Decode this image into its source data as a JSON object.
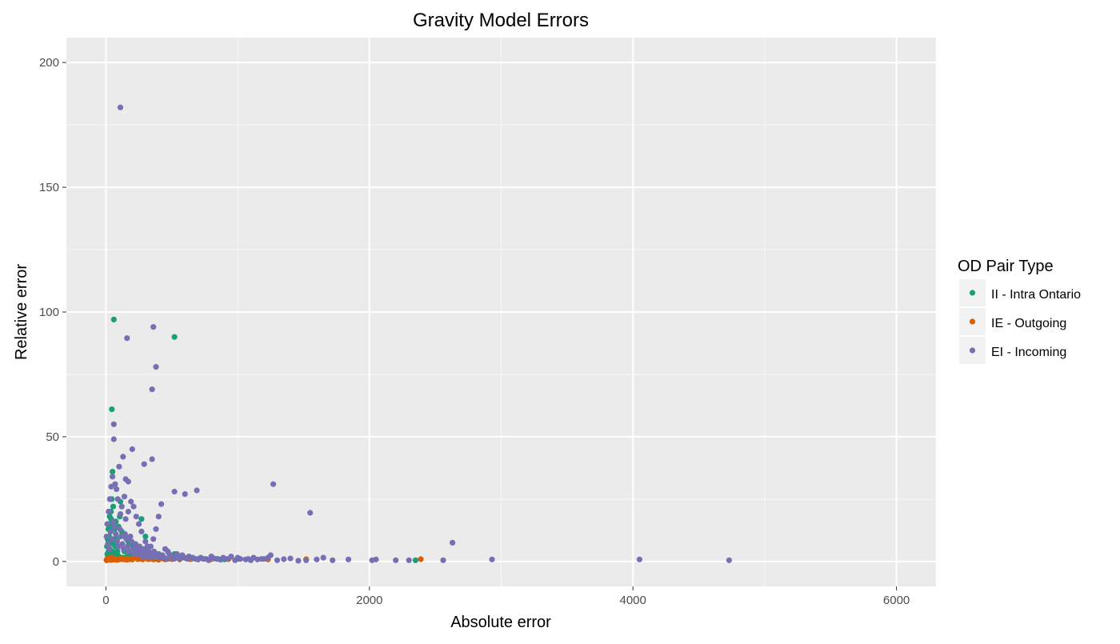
{
  "chart_data": {
    "type": "scatter",
    "title": "Gravity Model Errors",
    "xlabel": "Absolute error",
    "ylabel": "Relative error",
    "xlim": [
      -300,
      6300
    ],
    "ylim": [
      -10,
      210
    ],
    "x_ticks": [
      0,
      2000,
      4000,
      6000
    ],
    "y_ticks": [
      0,
      50,
      100,
      150,
      200
    ],
    "x_tick_labels": [
      "0",
      "2000",
      "4000",
      "6000"
    ],
    "y_tick_labels": [
      "0",
      "50",
      "100",
      "150",
      "200"
    ],
    "grid": true,
    "legend": {
      "title": "OD Pair Type",
      "position": "right"
    },
    "series": [
      {
        "name": "II - Intra Ontario",
        "color": "#1b9e77",
        "points": [
          [
            60,
            97
          ],
          [
            520,
            90
          ],
          [
            45,
            61
          ],
          [
            50,
            36
          ],
          [
            40,
            17
          ],
          [
            30,
            15
          ],
          [
            35,
            12
          ],
          [
            25,
            10
          ],
          [
            20,
            8
          ],
          [
            15,
            6
          ],
          [
            30,
            5
          ],
          [
            20,
            4
          ],
          [
            10,
            3
          ],
          [
            25,
            3
          ],
          [
            40,
            3
          ],
          [
            50,
            4
          ],
          [
            15,
            2
          ],
          [
            30,
            2
          ],
          [
            45,
            2
          ],
          [
            60,
            2
          ],
          [
            35,
            1
          ],
          [
            20,
            1
          ],
          [
            10,
            1
          ],
          [
            5,
            0.5
          ],
          [
            70,
            1.5
          ],
          [
            80,
            3
          ],
          [
            55,
            7
          ],
          [
            65,
            13
          ],
          [
            75,
            16
          ],
          [
            110,
            24
          ],
          [
            120,
            12
          ],
          [
            145,
            10
          ],
          [
            170,
            8
          ],
          [
            200,
            7
          ],
          [
            210,
            6
          ],
          [
            270,
            17
          ],
          [
            300,
            10
          ],
          [
            310,
            5
          ],
          [
            350,
            3
          ],
          [
            400,
            3
          ],
          [
            420,
            2
          ],
          [
            500,
            2
          ],
          [
            520,
            3
          ],
          [
            550,
            2
          ],
          [
            600,
            1.5
          ],
          [
            650,
            1
          ],
          [
            700,
            1
          ],
          [
            800,
            1
          ],
          [
            850,
            1
          ],
          [
            900,
            0.8
          ],
          [
            1000,
            1
          ],
          [
            2350,
            0.5
          ],
          [
            100,
            2
          ],
          [
            130,
            1.5
          ],
          [
            160,
            2
          ],
          [
            190,
            1.5
          ],
          [
            230,
            2
          ],
          [
            250,
            1
          ],
          [
            280,
            1
          ],
          [
            330,
            1
          ],
          [
            380,
            1
          ],
          [
            440,
            1
          ],
          [
            470,
            1
          ],
          [
            90,
            6
          ],
          [
            85,
            9
          ],
          [
            95,
            14
          ],
          [
            105,
            18
          ],
          [
            55,
            22
          ],
          [
            45,
            25
          ],
          [
            38,
            20
          ],
          [
            28,
            18
          ],
          [
            18,
            13
          ],
          [
            12,
            9
          ],
          [
            8,
            6
          ],
          [
            42,
            14
          ],
          [
            62,
            9
          ],
          [
            72,
            6
          ],
          [
            88,
            4
          ],
          [
            140,
            4
          ],
          [
            180,
            3
          ],
          [
            240,
            4
          ],
          [
            290,
            3
          ]
        ]
      },
      {
        "name": "IE - Outgoing",
        "color": "#d95f02",
        "points": [
          [
            5,
            0.5
          ],
          [
            10,
            0.6
          ],
          [
            20,
            0.7
          ],
          [
            30,
            0.8
          ],
          [
            40,
            0.6
          ],
          [
            50,
            0.7
          ],
          [
            60,
            0.8
          ],
          [
            70,
            0.9
          ],
          [
            80,
            0.6
          ],
          [
            90,
            0.7
          ],
          [
            100,
            0.8
          ],
          [
            120,
            0.9
          ],
          [
            140,
            0.8
          ],
          [
            160,
            0.7
          ],
          [
            180,
            0.9
          ],
          [
            200,
            0.8
          ],
          [
            240,
            0.9
          ],
          [
            280,
            0.8
          ],
          [
            320,
            0.9
          ],
          [
            360,
            0.8
          ],
          [
            400,
            0.7
          ],
          [
            450,
            0.8
          ],
          [
            500,
            0.9
          ],
          [
            560,
            0.8
          ],
          [
            640,
            0.9
          ],
          [
            700,
            0.8
          ],
          [
            800,
            0.9
          ],
          [
            930,
            0.9
          ],
          [
            1230,
            0.8
          ],
          [
            1520,
            0.9
          ],
          [
            2390,
            0.9
          ],
          [
            15,
            1.2
          ],
          [
            25,
            1.3
          ],
          [
            45,
            1.5
          ],
          [
            65,
            1.1
          ],
          [
            110,
            1.3
          ],
          [
            150,
            1.2
          ],
          [
            210,
            1.4
          ],
          [
            260,
            1.1
          ],
          [
            310,
            1.2
          ],
          [
            380,
            1.3
          ],
          [
            430,
            1.2
          ],
          [
            520,
            1.1
          ],
          [
            610,
            1.2
          ]
        ]
      },
      {
        "name": "EI - Incoming",
        "color": "#7570b3",
        "points": [
          [
            110,
            182
          ],
          [
            360,
            94
          ],
          [
            160,
            89.5
          ],
          [
            380,
            78
          ],
          [
            350,
            69
          ],
          [
            60,
            55
          ],
          [
            60,
            49
          ],
          [
            200,
            45
          ],
          [
            130,
            42
          ],
          [
            350,
            41
          ],
          [
            100,
            38
          ],
          [
            290,
            39
          ],
          [
            150,
            33
          ],
          [
            170,
            32
          ],
          [
            520,
            28
          ],
          [
            600,
            27
          ],
          [
            690,
            28.5
          ],
          [
            1270,
            31
          ],
          [
            1550,
            19.5
          ],
          [
            2630,
            7.5
          ],
          [
            4050,
            0.8
          ],
          [
            4730,
            0.5
          ],
          [
            2930,
            0.8
          ],
          [
            2560,
            0.5
          ],
          [
            2300,
            0.5
          ],
          [
            2200,
            0.5
          ],
          [
            2050,
            0.8
          ],
          [
            2020,
            0.5
          ],
          [
            1840,
            0.8
          ],
          [
            1720,
            0.5
          ],
          [
            1650,
            1.5
          ],
          [
            1600,
            0.8
          ],
          [
            1520,
            0.5
          ],
          [
            1460,
            0.3
          ],
          [
            1400,
            1.2
          ],
          [
            1350,
            0.9
          ],
          [
            1300,
            0.5
          ],
          [
            1250,
            2.5
          ],
          [
            1200,
            1
          ],
          [
            1150,
            0.8
          ],
          [
            1100,
            0.5
          ],
          [
            1060,
            0.8
          ],
          [
            1020,
            1
          ],
          [
            980,
            0.5
          ],
          [
            950,
            2
          ],
          [
            870,
            0.7
          ],
          [
            820,
            1.2
          ],
          [
            780,
            0.5
          ],
          [
            740,
            1
          ],
          [
            700,
            0.8
          ],
          [
            660,
            1.5
          ],
          [
            620,
            1
          ],
          [
            580,
            2.5
          ],
          [
            540,
            3
          ],
          [
            500,
            2
          ],
          [
            470,
            4
          ],
          [
            450,
            5
          ],
          [
            420,
            23
          ],
          [
            400,
            18
          ],
          [
            380,
            13
          ],
          [
            360,
            9
          ],
          [
            340,
            6
          ],
          [
            320,
            4
          ],
          [
            300,
            8
          ],
          [
            270,
            12
          ],
          [
            250,
            15
          ],
          [
            230,
            18
          ],
          [
            210,
            22
          ],
          [
            190,
            24
          ],
          [
            170,
            20
          ],
          [
            150,
            17
          ],
          [
            140,
            26
          ],
          [
            120,
            22
          ],
          [
            110,
            19
          ],
          [
            90,
            25
          ],
          [
            80,
            29
          ],
          [
            70,
            31
          ],
          [
            50,
            34
          ],
          [
            40,
            30
          ],
          [
            30,
            25
          ],
          [
            20,
            20
          ],
          [
            10,
            15
          ],
          [
            5,
            10
          ],
          [
            15,
            7
          ],
          [
            25,
            5
          ],
          [
            35,
            12
          ],
          [
            45,
            9
          ],
          [
            55,
            16
          ],
          [
            65,
            14
          ],
          [
            75,
            11
          ],
          [
            85,
            8
          ],
          [
            95,
            6
          ],
          [
            105,
            13
          ],
          [
            115,
            10
          ],
          [
            125,
            7
          ],
          [
            135,
            5
          ],
          [
            145,
            11
          ],
          [
            155,
            9
          ],
          [
            165,
            6
          ],
          [
            175,
            4
          ],
          [
            185,
            10
          ],
          [
            195,
            8
          ],
          [
            205,
            5
          ],
          [
            215,
            3
          ],
          [
            225,
            7
          ],
          [
            235,
            5
          ],
          [
            245,
            3
          ],
          [
            255,
            6
          ],
          [
            265,
            4
          ],
          [
            275,
            2
          ],
          [
            285,
            5
          ],
          [
            295,
            3
          ],
          [
            305,
            2
          ],
          [
            315,
            6
          ],
          [
            325,
            4
          ],
          [
            335,
            2
          ],
          [
            345,
            3
          ],
          [
            355,
            2
          ],
          [
            365,
            4
          ],
          [
            375,
            3
          ],
          [
            385,
            2
          ],
          [
            395,
            3
          ],
          [
            405,
            2
          ],
          [
            415,
            1.5
          ],
          [
            430,
            2.5
          ],
          [
            440,
            1.5
          ],
          [
            460,
            1
          ],
          [
            480,
            3
          ],
          [
            510,
            1
          ],
          [
            530,
            1.5
          ],
          [
            560,
            1
          ],
          [
            590,
            1.5
          ],
          [
            630,
            2
          ],
          [
            680,
            1
          ],
          [
            720,
            1.5
          ],
          [
            760,
            1
          ],
          [
            800,
            2
          ],
          [
            840,
            1
          ],
          [
            890,
            1.5
          ],
          [
            920,
            1
          ],
          [
            1000,
            1.5
          ],
          [
            1080,
            1
          ],
          [
            1120,
            1.5
          ],
          [
            1180,
            1
          ],
          [
            1230,
            1.5
          ]
        ]
      }
    ]
  }
}
